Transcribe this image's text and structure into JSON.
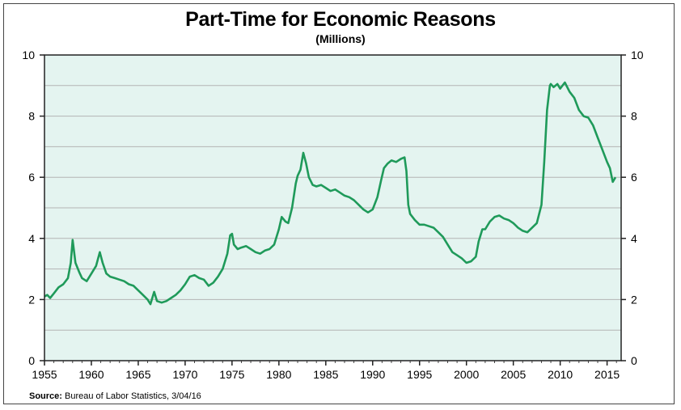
{
  "chart_data": {
    "type": "line",
    "title": "Part-Time for Economic Reasons",
    "subtitle": "(Millions)",
    "xlabel": "",
    "ylabel": "",
    "xlim": [
      1955,
      2016.5
    ],
    "ylim": [
      0,
      10
    ],
    "x_ticks": [
      "1955",
      "1960",
      "1965",
      "1970",
      "1975",
      "1980",
      "1985",
      "1990",
      "1995",
      "2000",
      "2005",
      "2010",
      "2015"
    ],
    "y_ticks": [
      "0",
      "2",
      "4",
      "6",
      "8",
      "10"
    ],
    "grid": true,
    "legend": "none",
    "colors": {
      "line": "#1f9a5a",
      "plot_bg": "#e4f4f0",
      "grid": "#b4b4b4"
    },
    "series": [
      {
        "x": [
          1955,
          1955.3,
          1955.6,
          1956,
          1956.5,
          1957,
          1957.5,
          1957.8,
          1958,
          1958.3,
          1958.7,
          1959,
          1959.5,
          1960,
          1960.5,
          1960.9,
          1961.2,
          1961.6,
          1962,
          1962.5,
          1963,
          1963.5,
          1964,
          1964.5,
          1965,
          1965.5,
          1966,
          1966.3,
          1966.7,
          1967,
          1967.5,
          1968,
          1968.5,
          1969,
          1969.5,
          1970,
          1970.5,
          1971,
          1971.5,
          1972,
          1972.5,
          1973,
          1973.5,
          1974,
          1974.5,
          1974.8,
          1975,
          1975.2,
          1975.6,
          1976,
          1976.5,
          1977,
          1977.5,
          1978,
          1978.5,
          1979,
          1979.5,
          1980,
          1980.3,
          1980.7,
          1981,
          1981.4,
          1981.8,
          1982,
          1982.3,
          1982.6,
          1982.9,
          1983.2,
          1983.6,
          1984,
          1984.5,
          1985,
          1985.5,
          1986,
          1986.5,
          1987,
          1987.5,
          1988,
          1988.5,
          1989,
          1989.5,
          1990,
          1990.5,
          1990.9,
          1991.2,
          1991.6,
          1992,
          1992.5,
          1993,
          1993.4,
          1993.6,
          1993.8,
          1994,
          1994.5,
          1995,
          1995.5,
          1996,
          1996.5,
          1997,
          1997.5,
          1998,
          1998.5,
          1999,
          1999.5,
          2000,
          2000.5,
          2001,
          2001.3,
          2001.7,
          2002,
          2002.5,
          2003,
          2003.5,
          2004,
          2004.5,
          2005,
          2005.5,
          2006,
          2006.5,
          2007,
          2007.5,
          2008,
          2008.3,
          2008.6,
          2008.9,
          2009,
          2009.3,
          2009.7,
          2010,
          2010.5,
          2011,
          2011.5,
          2012,
          2012.5,
          2013,
          2013.5,
          2014,
          2014.5,
          2015,
          2015.3,
          2015.6,
          2015.9
        ],
        "values": [
          2.1,
          2.15,
          2.05,
          2.2,
          2.4,
          2.5,
          2.7,
          3.2,
          3.95,
          3.2,
          2.9,
          2.7,
          2.6,
          2.85,
          3.1,
          3.55,
          3.2,
          2.85,
          2.75,
          2.7,
          2.65,
          2.6,
          2.5,
          2.45,
          2.3,
          2.15,
          2.0,
          1.85,
          2.25,
          1.95,
          1.9,
          1.95,
          2.05,
          2.15,
          2.3,
          2.5,
          2.75,
          2.8,
          2.7,
          2.65,
          2.45,
          2.55,
          2.75,
          3.0,
          3.5,
          4.1,
          4.15,
          3.8,
          3.65,
          3.7,
          3.75,
          3.65,
          3.55,
          3.5,
          3.6,
          3.65,
          3.8,
          4.3,
          4.7,
          4.55,
          4.5,
          5.0,
          5.8,
          6.05,
          6.25,
          6.8,
          6.45,
          6.0,
          5.75,
          5.7,
          5.75,
          5.65,
          5.55,
          5.6,
          5.5,
          5.4,
          5.35,
          5.25,
          5.1,
          4.95,
          4.85,
          4.95,
          5.35,
          5.9,
          6.3,
          6.45,
          6.55,
          6.5,
          6.6,
          6.65,
          6.2,
          5.1,
          4.8,
          4.6,
          4.45,
          4.45,
          4.4,
          4.35,
          4.2,
          4.05,
          3.8,
          3.55,
          3.45,
          3.35,
          3.2,
          3.25,
          3.4,
          3.9,
          4.3,
          4.3,
          4.55,
          4.7,
          4.75,
          4.65,
          4.6,
          4.5,
          4.35,
          4.25,
          4.2,
          4.35,
          4.5,
          5.1,
          6.5,
          8.2,
          9.0,
          9.05,
          8.95,
          9.05,
          8.9,
          9.1,
          8.8,
          8.6,
          8.2,
          8.0,
          7.95,
          7.7,
          7.3,
          6.9,
          6.5,
          6.3,
          5.85,
          6.0
        ]
      }
    ]
  },
  "source": {
    "label": "Source:",
    "text": "Bureau of Labor Statistics, 3/04/16"
  }
}
